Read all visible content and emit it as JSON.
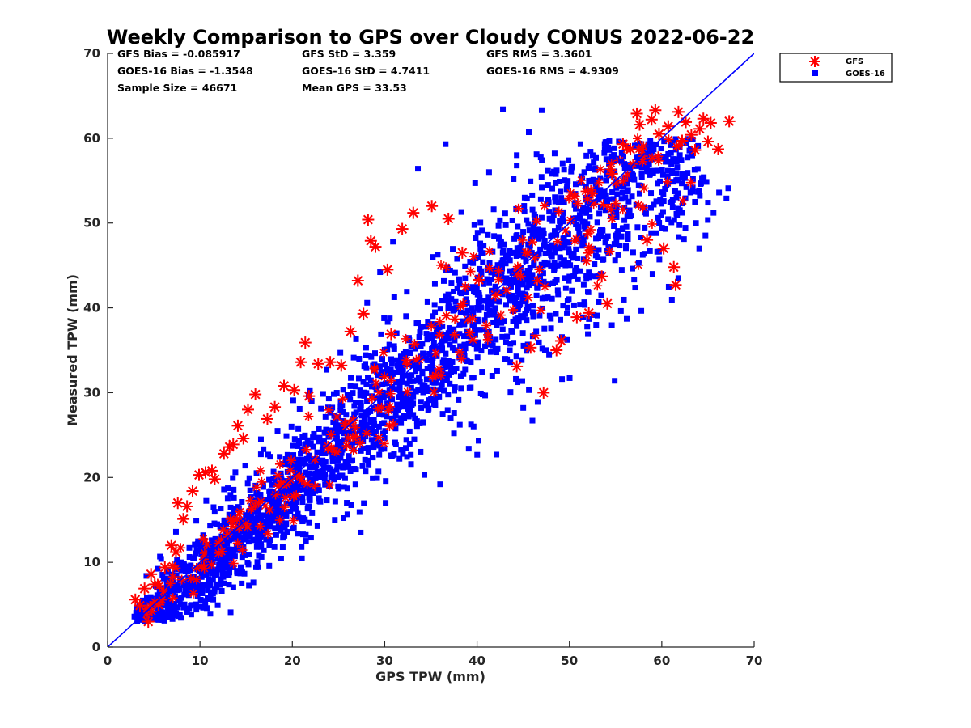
{
  "chart_data": {
    "type": "scatter",
    "title": "Weekly Comparison to GPS over Cloudy CONUS 2022-06-22",
    "xlabel": "GPS TPW (mm)",
    "ylabel": "Measured TPW (mm)",
    "xlim": [
      0,
      70
    ],
    "ylim": [
      0,
      70
    ],
    "xticks": [
      "0",
      "10",
      "20",
      "30",
      "40",
      "50",
      "60",
      "70"
    ],
    "yticks": [
      "0",
      "10",
      "20",
      "30",
      "40",
      "50",
      "60",
      "70"
    ],
    "grid": false,
    "legend_position": "outside top-right",
    "reference_line": {
      "x": [
        0,
        70
      ],
      "y": [
        0,
        70
      ],
      "color": "#0000ff"
    },
    "statistics": [
      [
        "GFS Bias = -0.085917",
        "GFS StD = 3.359",
        "GFS RMS = 3.3601"
      ],
      [
        "GOES-16 Bias = -1.3548",
        "GOES-16 StD = 4.7411",
        "GOES-16 RMS = 4.9309"
      ],
      [
        "Sample Size = 46671",
        "Mean GPS = 33.53"
      ]
    ],
    "series": [
      {
        "name": "GFS",
        "marker": "asterisk",
        "color": "#ff0000",
        "points": [
          [
            3.0,
            5.6
          ],
          [
            3.5,
            4.9
          ],
          [
            4.0,
            6.9
          ],
          [
            4.4,
            3.0
          ],
          [
            4.7,
            8.6
          ],
          [
            5.1,
            7.4
          ],
          [
            5.5,
            5.0
          ],
          [
            6.2,
            9.4
          ],
          [
            6.9,
            12.0
          ],
          [
            7.4,
            11.2
          ],
          [
            7.6,
            17.0
          ],
          [
            8.2,
            15.1
          ],
          [
            8.6,
            16.6
          ],
          [
            9.2,
            18.4
          ],
          [
            9.9,
            20.3
          ],
          [
            10.6,
            20.6
          ],
          [
            11.3,
            20.8
          ],
          [
            11.6,
            19.8
          ],
          [
            12.6,
            22.8
          ],
          [
            13.2,
            23.6
          ],
          [
            13.6,
            23.9
          ],
          [
            14.1,
            26.1
          ],
          [
            14.7,
            24.6
          ],
          [
            15.2,
            28.0
          ],
          [
            16.0,
            29.8
          ],
          [
            17.3,
            26.9
          ],
          [
            18.1,
            28.3
          ],
          [
            19.1,
            30.8
          ],
          [
            20.2,
            30.3
          ],
          [
            20.9,
            33.6
          ],
          [
            21.4,
            35.9
          ],
          [
            21.8,
            29.6
          ],
          [
            22.8,
            33.4
          ],
          [
            24.1,
            33.6
          ],
          [
            25.3,
            33.2
          ],
          [
            26.3,
            37.2
          ],
          [
            27.1,
            43.2
          ],
          [
            27.7,
            39.3
          ],
          [
            28.2,
            50.4
          ],
          [
            28.5,
            47.9
          ],
          [
            29.0,
            47.2
          ],
          [
            30.3,
            44.5
          ],
          [
            30.7,
            36.9
          ],
          [
            31.9,
            49.3
          ],
          [
            33.1,
            51.2
          ],
          [
            35.1,
            52.0
          ],
          [
            36.9,
            50.5
          ],
          [
            38.4,
            46.5
          ],
          [
            40.2,
            43.3
          ],
          [
            42.0,
            41.5
          ],
          [
            44.3,
            33.1
          ],
          [
            45.8,
            35.3
          ],
          [
            47.2,
            30.0
          ],
          [
            48.6,
            35.0
          ],
          [
            49.1,
            36.1
          ],
          [
            50.8,
            38.9
          ],
          [
            52.1,
            39.4
          ],
          [
            53.5,
            43.7
          ],
          [
            54.1,
            40.5
          ],
          [
            54.6,
            55.8
          ],
          [
            55.8,
            59.3
          ],
          [
            56.6,
            58.7
          ],
          [
            57.3,
            62.9
          ],
          [
            57.6,
            61.6
          ],
          [
            58.4,
            48.0
          ],
          [
            58.9,
            62.2
          ],
          [
            59.3,
            63.3
          ],
          [
            59.7,
            60.5
          ],
          [
            60.2,
            47.0
          ],
          [
            60.7,
            61.4
          ],
          [
            61.3,
            44.8
          ],
          [
            61.5,
            42.7
          ],
          [
            61.8,
            63.1
          ],
          [
            62.2,
            59.7
          ],
          [
            62.6,
            61.9
          ],
          [
            63.2,
            60.4
          ],
          [
            63.6,
            58.6
          ],
          [
            64.1,
            61.1
          ],
          [
            64.5,
            62.3
          ],
          [
            65.0,
            59.6
          ],
          [
            65.3,
            61.8
          ],
          [
            66.1,
            58.7
          ],
          [
            67.3,
            62.0
          ]
        ]
      },
      {
        "name": "GOES-16",
        "marker": "square",
        "color": "#0000ff",
        "points": [
          [
            2.9,
            3.6
          ],
          [
            3.8,
            5.5
          ],
          [
            4.2,
            8.4
          ],
          [
            5.8,
            10.4
          ],
          [
            6.7,
            4.5
          ],
          [
            7.4,
            13.6
          ],
          [
            8.3,
            6.2
          ],
          [
            9.6,
            14.9
          ],
          [
            11.1,
            11.3
          ],
          [
            11.8,
            7.0
          ],
          [
            12.6,
            18.6
          ],
          [
            14.0,
            9.0
          ],
          [
            14.9,
            21.4
          ],
          [
            15.8,
            12.6
          ],
          [
            16.6,
            24.5
          ],
          [
            17.5,
            9.6
          ],
          [
            18.4,
            25.5
          ],
          [
            19.3,
            14.6
          ],
          [
            20.1,
            29.1
          ],
          [
            21.0,
            11.8
          ],
          [
            21.9,
            30.2
          ],
          [
            22.8,
            18.5
          ],
          [
            23.7,
            32.7
          ],
          [
            24.6,
            15.0
          ],
          [
            25.2,
            34.7
          ],
          [
            26.0,
            21.6
          ],
          [
            26.9,
            36.3
          ],
          [
            27.4,
            13.5
          ],
          [
            28.1,
            40.6
          ],
          [
            28.7,
            19.9
          ],
          [
            29.5,
            44.2
          ],
          [
            30.1,
            17.0
          ],
          [
            30.9,
            47.8
          ],
          [
            31.6,
            22.2
          ],
          [
            32.4,
            41.9
          ],
          [
            33.2,
            24.5
          ],
          [
            33.6,
            56.4
          ],
          [
            34.3,
            20.3
          ],
          [
            35.2,
            46.0
          ],
          [
            36.0,
            19.2
          ],
          [
            36.6,
            59.3
          ],
          [
            37.5,
            25.2
          ],
          [
            38.3,
            51.3
          ],
          [
            39.1,
            23.4
          ],
          [
            39.8,
            54.7
          ],
          [
            40.6,
            29.8
          ],
          [
            41.3,
            56.0
          ],
          [
            42.1,
            22.7
          ],
          [
            42.8,
            63.4
          ],
          [
            43.6,
            33.6
          ],
          [
            44.3,
            58.0
          ],
          [
            45.0,
            28.2
          ],
          [
            45.6,
            60.7
          ],
          [
            46.4,
            37.2
          ],
          [
            47.0,
            63.3
          ],
          [
            47.8,
            34.5
          ],
          [
            48.4,
            58.2
          ],
          [
            49.2,
            31.6
          ],
          [
            49.9,
            57.4
          ],
          [
            50.5,
            40.3
          ],
          [
            51.2,
            59.3
          ],
          [
            52.0,
            36.9
          ],
          [
            52.6,
            55.1
          ],
          [
            53.4,
            44.0
          ],
          [
            54.1,
            52.6
          ],
          [
            54.9,
            31.4
          ],
          [
            55.6,
            57.3
          ],
          [
            56.2,
            38.7
          ],
          [
            56.9,
            55.6
          ],
          [
            57.5,
            45.3
          ],
          [
            58.3,
            51.1
          ],
          [
            59.0,
            44.0
          ],
          [
            59.8,
            54.9
          ],
          [
            60.4,
            49.3
          ],
          [
            61.1,
            52.5
          ],
          [
            61.8,
            43.5
          ],
          [
            62.4,
            48.1
          ],
          [
            63.1,
            53.6
          ],
          [
            63.7,
            50.0
          ],
          [
            64.2,
            54.6
          ],
          [
            65.0,
            52.4
          ],
          [
            65.6,
            51.2
          ],
          [
            66.2,
            53.6
          ],
          [
            67.0,
            52.9
          ],
          [
            67.2,
            54.1
          ]
        ]
      }
    ]
  }
}
